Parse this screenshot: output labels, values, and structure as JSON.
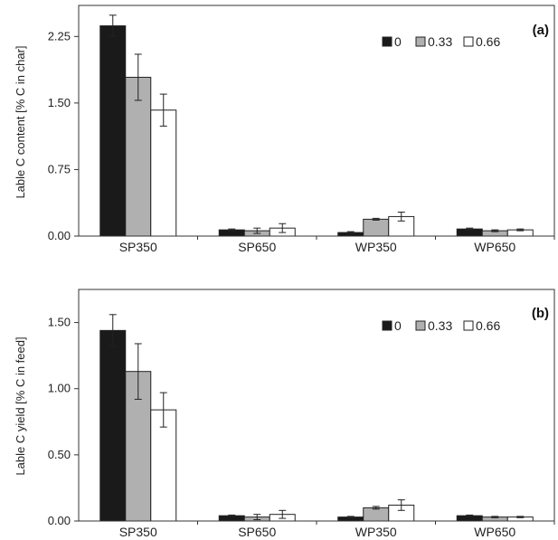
{
  "chart_data": [
    {
      "type": "bar",
      "panel_label": "(a)",
      "ylabel": "Lable C content [% C in char]",
      "categories": [
        "SP350",
        "SP650",
        "WP350",
        "WP650"
      ],
      "ylim": [
        0,
        2.6
      ],
      "yticks": [
        "0.00",
        "0.75",
        "1.50",
        "2.25"
      ],
      "legend_position": "top-right",
      "series": [
        {
          "name": "0",
          "color": "#1a1a1a",
          "values": [
            2.37,
            0.07,
            0.04,
            0.08
          ],
          "errors": [
            0.12,
            0.01,
            0.01,
            0.01
          ]
        },
        {
          "name": "0.33",
          "color": "#b0b0b0",
          "values": [
            1.79,
            0.06,
            0.19,
            0.06
          ],
          "errors": [
            0.26,
            0.03,
            0.01,
            0.01
          ]
        },
        {
          "name": "0.66",
          "color": "#ffffff",
          "values": [
            1.42,
            0.09,
            0.22,
            0.07
          ],
          "errors": [
            0.18,
            0.05,
            0.05,
            0.01
          ]
        }
      ]
    },
    {
      "type": "bar",
      "panel_label": "(b)",
      "ylabel": "Lable C yield [% C in feed]",
      "categories": [
        "SP350",
        "SP650",
        "WP350",
        "WP650"
      ],
      "ylim": [
        0,
        1.75
      ],
      "yticks": [
        "0.00",
        "0.50",
        "1.00",
        "1.50"
      ],
      "legend_position": "top-right",
      "series": [
        {
          "name": "0",
          "color": "#1a1a1a",
          "values": [
            1.44,
            0.04,
            0.03,
            0.04
          ],
          "errors": [
            0.12,
            0.005,
            0.005,
            0.005
          ]
        },
        {
          "name": "0.33",
          "color": "#b0b0b0",
          "values": [
            1.13,
            0.03,
            0.1,
            0.03
          ],
          "errors": [
            0.21,
            0.02,
            0.01,
            0.005
          ]
        },
        {
          "name": "0.66",
          "color": "#ffffff",
          "values": [
            0.84,
            0.05,
            0.12,
            0.03
          ],
          "errors": [
            0.13,
            0.03,
            0.04,
            0.005
          ]
        }
      ]
    }
  ]
}
